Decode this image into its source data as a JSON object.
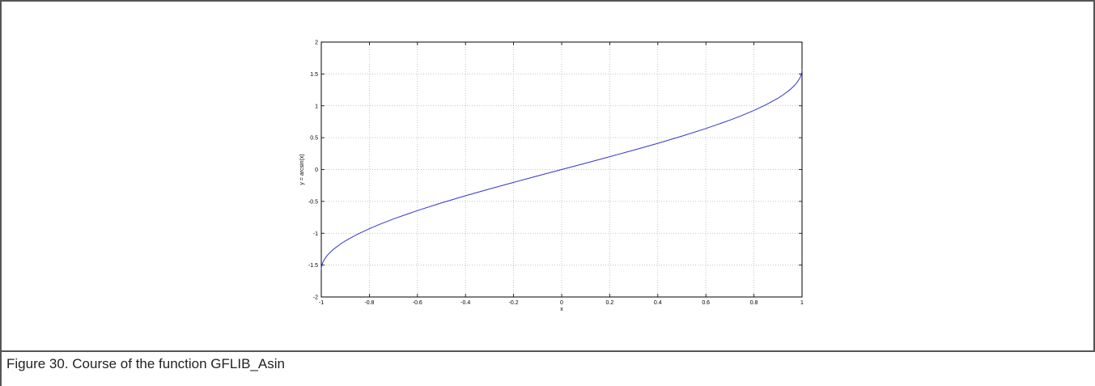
{
  "caption": "Figure 30.  Course of the function GFLIB_Asin",
  "chart_data": {
    "type": "line",
    "title": "",
    "xlabel": "x",
    "ylabel": "y = arcsin(x)",
    "xlim": [
      -1,
      1
    ],
    "ylim": [
      -2,
      2
    ],
    "xticks": [
      -1,
      -0.8,
      -0.6,
      -0.4,
      -0.2,
      0,
      0.2,
      0.4,
      0.6,
      0.8,
      1
    ],
    "yticks": [
      -2,
      -1.5,
      -1,
      -0.5,
      0,
      0.5,
      1,
      1.5,
      2
    ],
    "grid": true,
    "line_color": "#3333cc",
    "series": [
      {
        "x": [
          -1,
          -0.999,
          -0.995,
          -0.99,
          -0.98,
          -0.97,
          -0.95,
          -0.92,
          -0.9,
          -0.85,
          -0.8,
          -0.75,
          -0.7,
          -0.6,
          -0.5,
          -0.4,
          -0.3,
          -0.2,
          -0.1,
          0,
          0.1,
          0.2,
          0.3,
          0.4,
          0.5,
          0.6,
          0.7,
          0.75,
          0.8,
          0.85,
          0.9,
          0.92,
          0.95,
          0.97,
          0.98,
          0.99,
          0.995,
          0.999,
          1
        ],
        "y": [
          -1.5708,
          -1.5261,
          -1.4706,
          -1.4293,
          -1.3705,
          -1.3252,
          -1.2532,
          -1.1681,
          -1.1198,
          -1.016,
          -0.9273,
          -0.8481,
          -0.7754,
          -0.6435,
          -0.5236,
          -0.4115,
          -0.3047,
          -0.2014,
          -0.1002,
          0,
          0.1002,
          0.2014,
          0.3047,
          0.4115,
          0.5236,
          0.6435,
          0.7754,
          0.8481,
          0.9273,
          1.016,
          1.1198,
          1.1681,
          1.2532,
          1.3252,
          1.3705,
          1.4293,
          1.4706,
          1.5261,
          1.5708
        ]
      }
    ]
  }
}
